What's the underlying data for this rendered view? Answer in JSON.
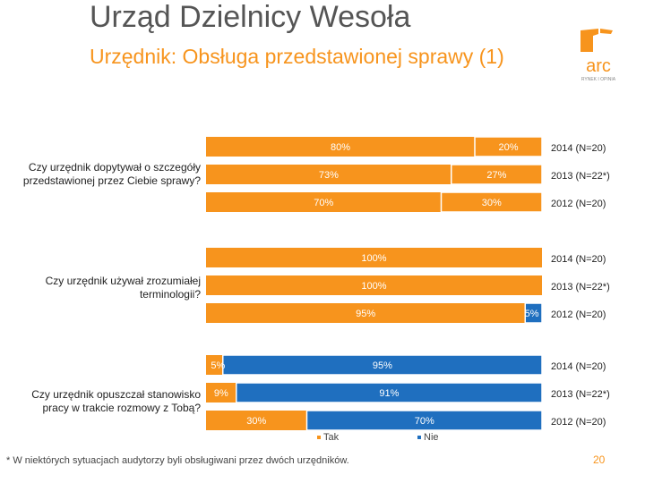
{
  "header": {
    "title": "Urząd Dzielnicy Wesoła",
    "subtitle": "Urzędnik: Obsługa przedstawionej sprawy (1)"
  },
  "logo": {
    "name": "arc",
    "tagline": "RYNEK I OPINIA"
  },
  "colors": {
    "tak": "#F7941D",
    "nie": "#1F6FBF",
    "accent": "#F7941D",
    "title": "#555555"
  },
  "chart_data": {
    "type": "bar",
    "orientation": "horizontal",
    "stacked": true,
    "percent": true,
    "legend": {
      "position": "bottom",
      "items": [
        {
          "name": "Tak",
          "color": "#F7941D"
        },
        {
          "name": "Nie",
          "color": "#1F6FBF"
        }
      ]
    },
    "groups": [
      {
        "question": "Czy urzędnik dopytywał o szczegóły przedstawionej przez Ciebie sprawy?",
        "bars": [
          {
            "year": "2014 (N=20)",
            "tak": 80,
            "nie": 20,
            "tak_label": "80%",
            "nie_label": "20%",
            "tak_color": "#F7941D",
            "nie_color": "#F7941D"
          },
          {
            "year": "2013 (N=22*)",
            "tak": 73,
            "nie": 27,
            "tak_label": "73%",
            "nie_label": "27%",
            "tak_color": "#F7941D",
            "nie_color": "#F7941D"
          },
          {
            "year": "2012 (N=20)",
            "tak": 70,
            "nie": 30,
            "tak_label": "70%",
            "nie_label": "30%",
            "tak_color": "#F7941D",
            "nie_color": "#F7941D"
          }
        ]
      },
      {
        "question": "Czy urzędnik używał zrozumiałej terminologii?",
        "bars": [
          {
            "year": "2014 (N=20)",
            "tak": 100,
            "nie": 0,
            "tak_label": "100%",
            "nie_label": "",
            "tak_color": "#F7941D",
            "nie_color": "#1F6FBF"
          },
          {
            "year": "2013 (N=22*)",
            "tak": 100,
            "nie": 0,
            "tak_label": "100%",
            "nie_label": "",
            "tak_color": "#F7941D",
            "nie_color": "#1F6FBF"
          },
          {
            "year": "2012 (N=20)",
            "tak": 95,
            "nie": 5,
            "tak_label": "95%",
            "nie_label": "5%",
            "tak_color": "#F7941D",
            "nie_color": "#1F6FBF"
          }
        ]
      },
      {
        "question": "Czy urzędnik opuszczał stanowisko pracy w trakcie rozmowy z Tobą?",
        "bars": [
          {
            "year": "2014 (N=20)",
            "tak": 5,
            "nie": 95,
            "tak_label": "5%",
            "nie_label": "95%",
            "tak_color": "#F7941D",
            "nie_color": "#1F6FBF"
          },
          {
            "year": "2013 (N=22*)",
            "tak": 9,
            "nie": 91,
            "tak_label": "9%",
            "nie_label": "91%",
            "tak_color": "#F7941D",
            "nie_color": "#1F6FBF"
          },
          {
            "year": "2012 (N=20)",
            "tak": 30,
            "nie": 70,
            "tak_label": "30%",
            "nie_label": "70%",
            "tak_color": "#F7941D",
            "nie_color": "#1F6FBF"
          }
        ]
      }
    ]
  },
  "footnote": "* W niektórych sytuacjach audytorzy byli obsługiwani przez dwóch urzędników.",
  "page_number": "20"
}
